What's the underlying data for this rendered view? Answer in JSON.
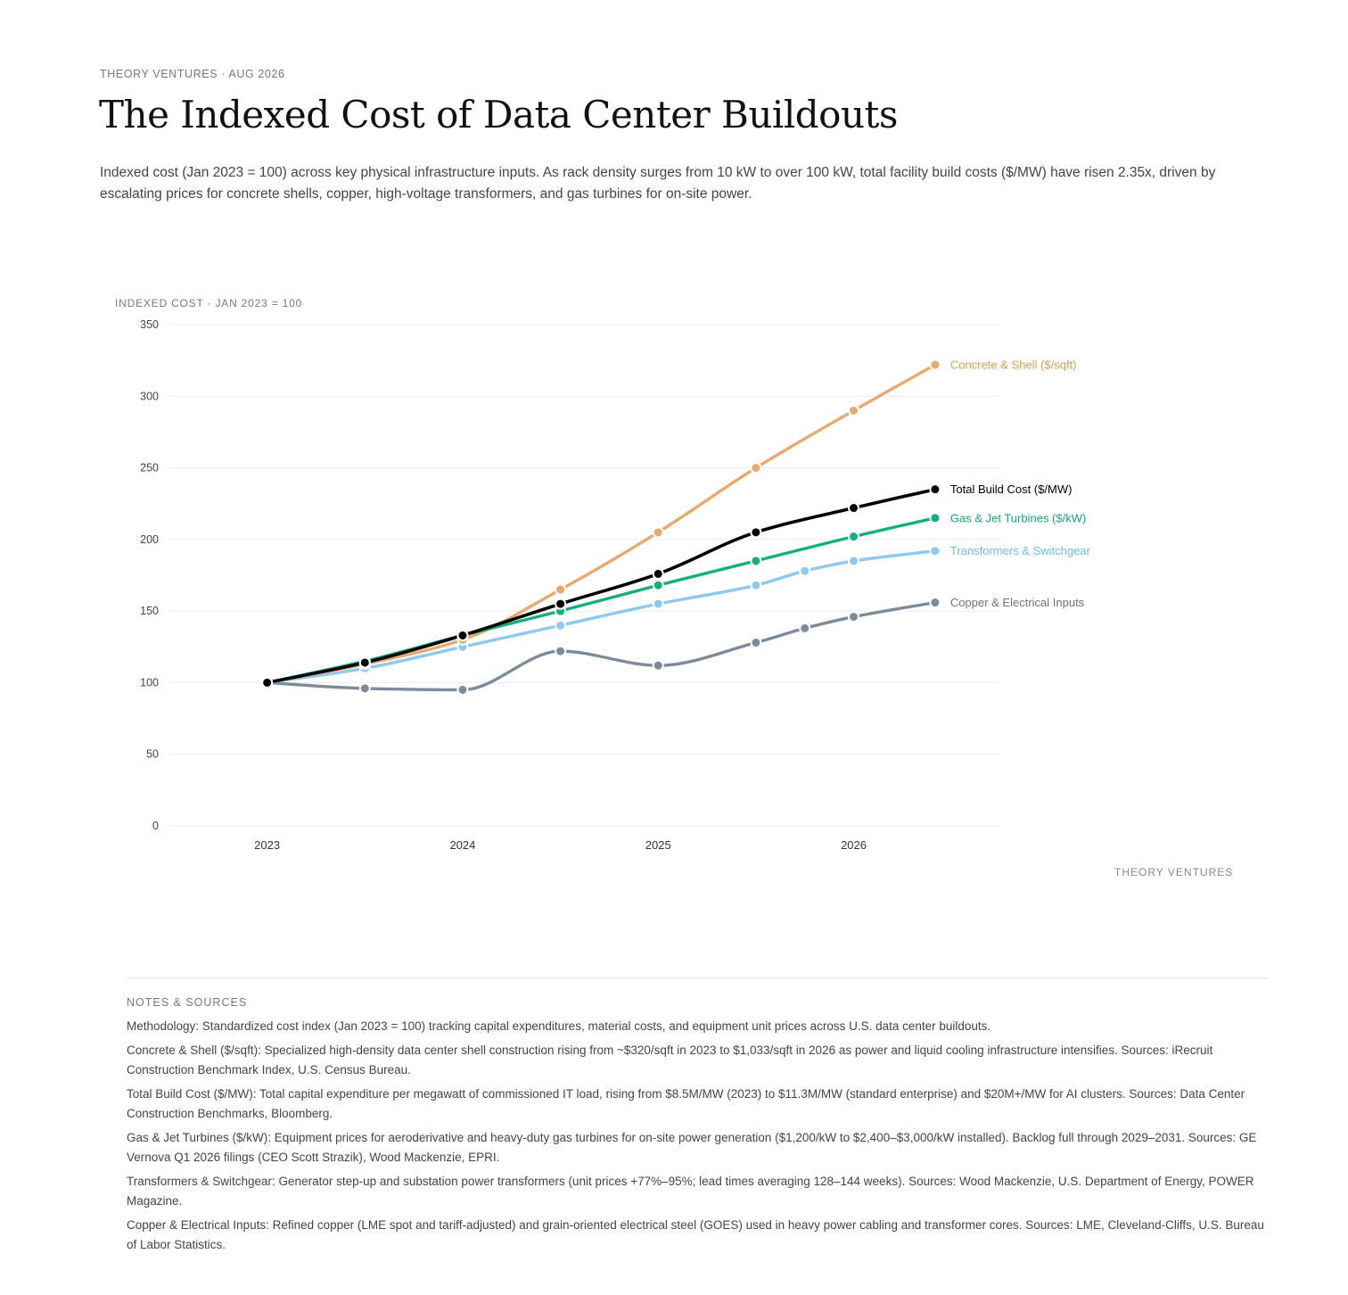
{
  "header": {
    "eyebrow": "THEORY VENTURES · AUG 2026",
    "title": "The Indexed Cost of Data Center Buildouts",
    "subtitle": "Indexed cost (Jan 2023 = 100) across key physical infrastructure inputs. As rack density surges from 10 kW to over 100 kW, total facility build costs ($/MW) have risen 2.35x, driven by escalating prices for concrete shells, copper, high-voltage transformers, and gas turbines for on-site power."
  },
  "chart_data": {
    "type": "line",
    "ylabel": "INDEXED COST · JAN 2023 = 100",
    "ylim": [
      0,
      350
    ],
    "yticks": [
      0,
      50,
      100,
      150,
      200,
      250,
      300,
      350
    ],
    "xlim": [
      "2022-07",
      "2026-10"
    ],
    "xticks": [
      "2023",
      "2024",
      "2025",
      "2026"
    ],
    "grid": true,
    "legend": "direct labels at line ends",
    "series": [
      {
        "name": "Concrete & Shell ($/sqft)",
        "color": "#e8a96e",
        "label_color": "#e39a55",
        "x": [
          "2023-01",
          "2023-07",
          "2024-01",
          "2024-07",
          "2025-01",
          "2025-07",
          "2026-01",
          "2026-06"
        ],
        "y": [
          100,
          113,
          130,
          165,
          205,
          250,
          290,
          322
        ]
      },
      {
        "name": "Total Build Cost ($/MW)",
        "color": "#000000",
        "label_color": "#000000",
        "x": [
          "2023-01",
          "2023-07",
          "2024-01",
          "2024-07",
          "2025-01",
          "2025-07",
          "2026-01",
          "2026-06"
        ],
        "y": [
          100,
          114,
          133,
          155,
          176,
          205,
          222,
          235
        ]
      },
      {
        "name": "Gas & Jet Turbines ($/kW)",
        "color": "#14b07a",
        "label_color": "#12a874",
        "x": [
          "2023-01",
          "2023-07",
          "2024-01",
          "2024-07",
          "2025-01",
          "2025-07",
          "2026-01",
          "2026-06"
        ],
        "y": [
          100,
          115,
          133,
          150,
          168,
          185,
          202,
          215
        ]
      },
      {
        "name": "Transformers & Switchgear",
        "color": "#8ecaf0",
        "label_color": "#6cbcf0",
        "x": [
          "2023-01",
          "2023-07",
          "2024-01",
          "2024-07",
          "2025-01",
          "2025-07",
          "2025-10",
          "2026-01",
          "2026-06"
        ],
        "y": [
          100,
          110,
          125,
          140,
          155,
          168,
          178,
          185,
          192
        ]
      },
      {
        "name": "Copper & Electrical Inputs",
        "color": "#7d8a99",
        "label_color": "#6b7480",
        "x": [
          "2023-01",
          "2023-07",
          "2024-01",
          "2024-07",
          "2025-01",
          "2025-07",
          "2025-10",
          "2026-01",
          "2026-06"
        ],
        "y": [
          100,
          96,
          95,
          122,
          112,
          128,
          138,
          146,
          156
        ]
      }
    ]
  },
  "watermark": "THEORY VENTURES",
  "notes": {
    "title": "NOTES & SOURCES",
    "items": [
      "Methodology: Standardized cost index (Jan 2023 = 100) tracking capital expenditures, material costs, and equipment unit prices across U.S. data center buildouts.",
      "Concrete & Shell ($/sqft): Specialized high-density data center shell construction rising from ~$320/sqft in 2023 to $1,033/sqft in 2026 as power and liquid cooling infrastructure intensifies. Sources: iRecruit Construction Benchmark Index, U.S. Census Bureau.",
      "Total Build Cost ($/MW): Total capital expenditure per megawatt of commissioned IT load, rising from $8.5M/MW (2023) to $11.3M/MW (standard enterprise) and $20M+/MW for AI clusters. Sources: Data Center Construction Benchmarks, Bloomberg.",
      "Gas & Jet Turbines ($/kW): Equipment prices for aeroderivative and heavy-duty gas turbines for on-site power generation ($1,200/kW to $2,400–$3,000/kW installed). Backlog full through 2029–2031. Sources: GE Vernova Q1 2026 filings (CEO Scott Strazik), Wood Mackenzie, EPRI.",
      "Transformers & Switchgear: Generator step-up and substation power transformers (unit prices +77%–95%; lead times averaging 128–144 weeks). Sources: Wood Mackenzie, U.S. Department of Energy, POWER Magazine.",
      "Copper & Electrical Inputs: Refined copper (LME spot and tariff-adjusted) and grain-oriented electrical steel (GOES) used in heavy power cabling and transformer cores. Sources: LME, Cleveland-Cliffs, U.S. Bureau of Labor Statistics."
    ]
  }
}
